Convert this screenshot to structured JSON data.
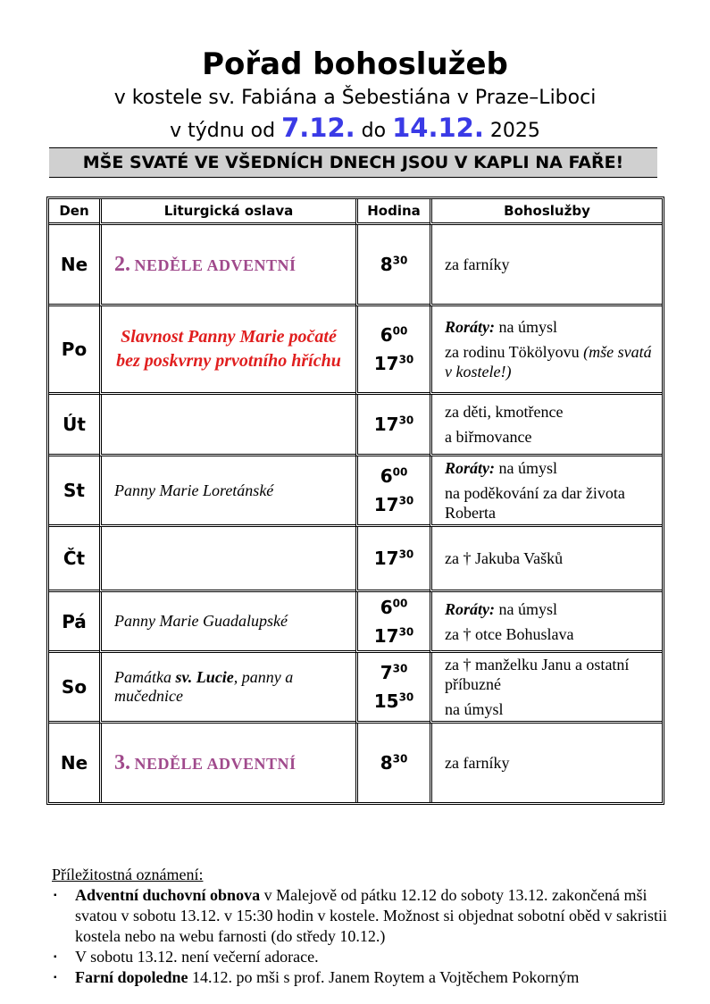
{
  "header": {
    "title": "Pořad bohoslužeb",
    "subtitle": "v kostele sv. Fabiána a Šebestiána v Praze–Liboci",
    "week": {
      "prefix": "v týdnu od",
      "from": "7.12.",
      "middle": "do",
      "to": "14.12.",
      "year": "2025"
    },
    "banner": "MŠE SVATÉ VE VŠEDNÍCH DNECH JSOU V KAPLI NA FAŘE!"
  },
  "table": {
    "columns": [
      "Den",
      "Liturgická oslava",
      "Hodina",
      "Bohoslužby"
    ],
    "rows": [
      {
        "day": "Ne",
        "celebration": [
          {
            "text": "2.",
            "style": "sunday-num"
          },
          {
            "text": "NEDĚLE ADVENTNÍ",
            "style": "sunday"
          }
        ],
        "times": [
          {
            "hour": "8",
            "minute": "30"
          }
        ],
        "services": [
          [
            {
              "text": "za farníky",
              "style": "plain"
            }
          ]
        ]
      },
      {
        "day": "Po",
        "celebration": [
          {
            "text": "Slavnost Panny Marie počaté bez poskvrny prvotního hříchu",
            "style": "feast"
          }
        ],
        "times": [
          {
            "hour": "6",
            "minute": "00"
          },
          {
            "hour": "17",
            "minute": "30"
          }
        ],
        "services": [
          [
            {
              "text": "Roráty:",
              "style": "bold-italic"
            },
            {
              "text": "na úmysl",
              "style": "plain"
            }
          ],
          [
            {
              "text": "za rodinu Tökölyovu",
              "style": "plain"
            },
            {
              "text": "(mše svatá v kostele!)",
              "style": "italic"
            }
          ]
        ]
      },
      {
        "day": "Út",
        "celebration": [],
        "times": [
          {
            "hour": "17",
            "minute": "30"
          }
        ],
        "services": [
          [
            {
              "text": "za děti, kmotřence",
              "style": "plain"
            }
          ],
          [
            {
              "text": "a biřmovance",
              "style": "plain"
            }
          ]
        ]
      },
      {
        "day": "St",
        "celebration": [
          {
            "text": "Panny Marie Loretánské",
            "style": "italic"
          }
        ],
        "times": [
          {
            "hour": "6",
            "minute": "00"
          },
          {
            "hour": "17",
            "minute": "30"
          }
        ],
        "services": [
          [
            {
              "text": "Roráty:",
              "style": "bold-italic"
            },
            {
              "text": "na úmysl",
              "style": "plain"
            }
          ],
          [
            {
              "text": "na poděkování za dar života Roberta",
              "style": "plain"
            }
          ]
        ]
      },
      {
        "day": "Čt",
        "celebration": [],
        "times": [
          {
            "hour": "17",
            "minute": "30"
          }
        ],
        "services": [
          [
            {
              "text": "za † Jakuba Vašků",
              "style": "plain"
            }
          ]
        ]
      },
      {
        "day": "Pá",
        "celebration": [
          {
            "text": "Panny Marie Guadalupské",
            "style": "italic"
          }
        ],
        "times": [
          {
            "hour": "6",
            "minute": "00"
          },
          {
            "hour": "17",
            "minute": "30"
          }
        ],
        "services": [
          [
            {
              "text": "Roráty:",
              "style": "bold-italic"
            },
            {
              "text": "na úmysl",
              "style": "plain"
            }
          ],
          [
            {
              "text": "za † otce Bohuslava",
              "style": "plain"
            }
          ]
        ]
      },
      {
        "day": "So",
        "celebration": [
          {
            "text": "Památka",
            "style": "italic"
          },
          {
            "text": "sv. Lucie",
            "style": "bold-italic"
          },
          {
            "text": ", panny a mučednice",
            "style": "italic-tight"
          }
        ],
        "times": [
          {
            "hour": "7",
            "minute": "30"
          },
          {
            "hour": "15",
            "minute": "30"
          }
        ],
        "services": [
          [
            {
              "text": "za † manželku Janu a ostatní příbuzné",
              "style": "plain"
            }
          ],
          [
            {
              "text": "na úmysl",
              "style": "plain"
            }
          ]
        ]
      },
      {
        "day": "Ne",
        "celebration": [
          {
            "text": "3.",
            "style": "sunday-num"
          },
          {
            "text": "NEDĚLE ADVENTNÍ",
            "style": "sunday"
          }
        ],
        "times": [
          {
            "hour": "8",
            "minute": "30"
          }
        ],
        "services": [
          [
            {
              "text": "za farníky",
              "style": "plain"
            }
          ]
        ]
      }
    ]
  },
  "notes": {
    "heading": "Příležitostná oznámení:",
    "items": [
      [
        {
          "text": "Adventní duchovní obnova",
          "style": "bold"
        },
        {
          "text": "v Malejově od pátku 12.12 do soboty 13.12. zakončená mši svatou v sobotu 13.12. v 15:30 hodin v kostele. Možnost si objednat sobotní oběd v sakristii kostela nebo na webu farnosti (do středy 10.12.)",
          "style": "plain"
        }
      ],
      [
        {
          "text": "V sobotu 13.12. není večerní adorace.",
          "style": "plain"
        }
      ],
      [
        {
          "text": "Farní dopoledne",
          "style": "bold"
        },
        {
          "text": "14.12. po mši s prof. Janem Roytem a Vojtěchem Pokorným",
          "style": "plain"
        }
      ]
    ]
  }
}
